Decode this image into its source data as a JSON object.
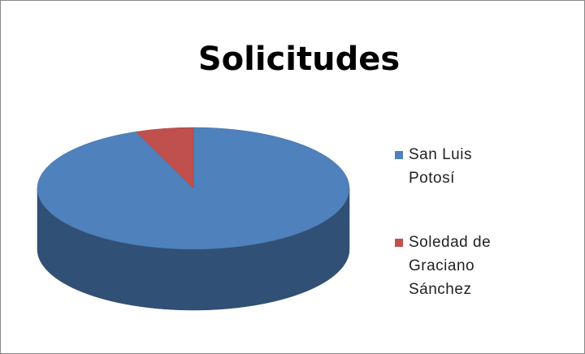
{
  "chart_data": {
    "type": "pie",
    "title": "Solicitudes",
    "categories": [
      "San Luis Potosí",
      "Soledad de Graciano Sánchez"
    ],
    "values": [
      94,
      6
    ],
    "colors": [
      "#4f81bd",
      "#c0504d"
    ]
  }
}
